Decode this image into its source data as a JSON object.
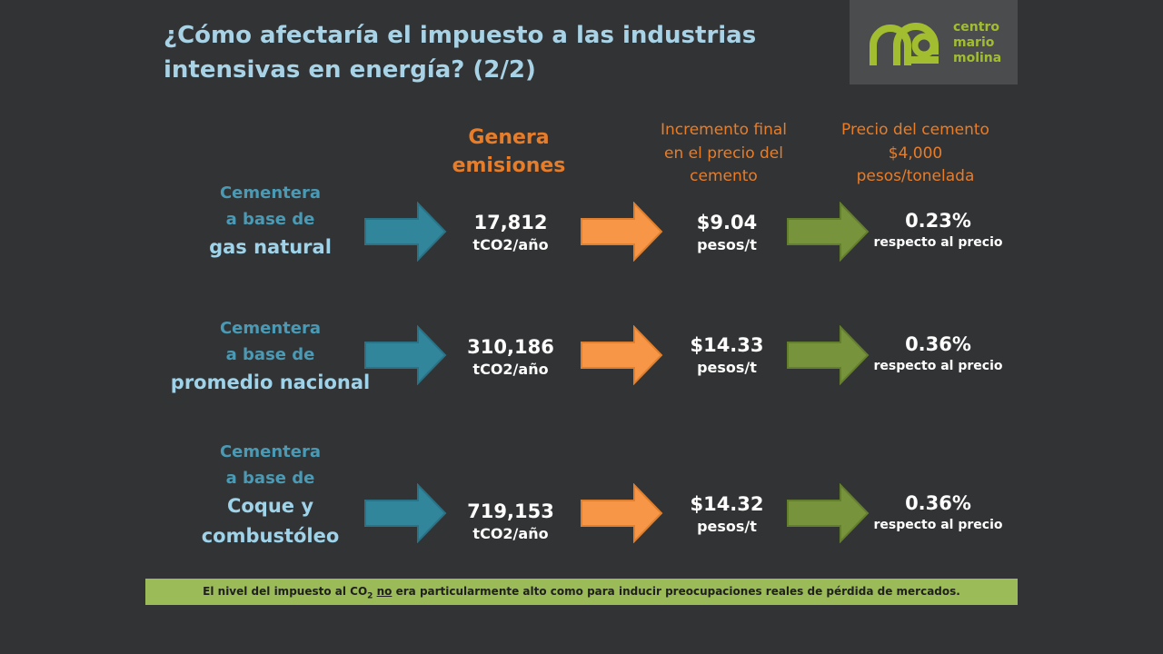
{
  "slide": {
    "title_line1": "¿Cómo afectaría el impuesto a las industrias",
    "title_line2": "intensivas en energía? (2/2)"
  },
  "logo": {
    "line1": "centro",
    "line2": "mario",
    "line3": "molina",
    "color": "#a2be30"
  },
  "headers": {
    "emissions_line1": "Genera",
    "emissions_line2": "emisiones",
    "increase_line1": "Incremento final",
    "increase_line2": "en el precio del",
    "increase_line3": "cemento",
    "price_line1": "Precio del cemento",
    "price_line2": "$4,000",
    "price_line3": "pesos/tonelada"
  },
  "rows": [
    {
      "label_line1": "Cementera",
      "label_line2": "a base de",
      "label_line3": "gas natural",
      "label_line4": "",
      "emissions": "17,812",
      "emissions_unit": "tCO2/año",
      "increase": "$9.04",
      "increase_unit": "pesos/t",
      "percent": "0.23%",
      "percent_note": "respecto al precio"
    },
    {
      "label_line1": "Cementera",
      "label_line2": "a base de",
      "label_line3": "promedio nacional",
      "label_line4": "",
      "emissions": "310,186",
      "emissions_unit": "tCO2/año",
      "increase": "$14.33",
      "increase_unit": "pesos/t",
      "percent": "0.36%",
      "percent_note": "respecto al precio"
    },
    {
      "label_line1": "Cementera",
      "label_line2": "a base de",
      "label_line3": "Coque y",
      "label_line4": "combustóleo",
      "emissions": "719,153",
      "emissions_unit": "tCO2/año",
      "increase": "$14.32",
      "increase_unit": "pesos/t",
      "percent": "0.36%",
      "percent_note": "respecto al precio"
    }
  ],
  "footer": {
    "part1": "El nivel del impuesto al CO",
    "subscript": "2",
    "underlined": "no",
    "part2": "era particularmente alto como para inducir preocupaciones reales de pérdida de mercados."
  },
  "colors": {
    "background": "#323334",
    "title": "#a8d3e6",
    "header_orange": "#e87d29",
    "arrow_blue": "#31869b",
    "arrow_orange": "#f79646",
    "arrow_green": "#77933c",
    "footer_bg": "#9bbb59"
  }
}
